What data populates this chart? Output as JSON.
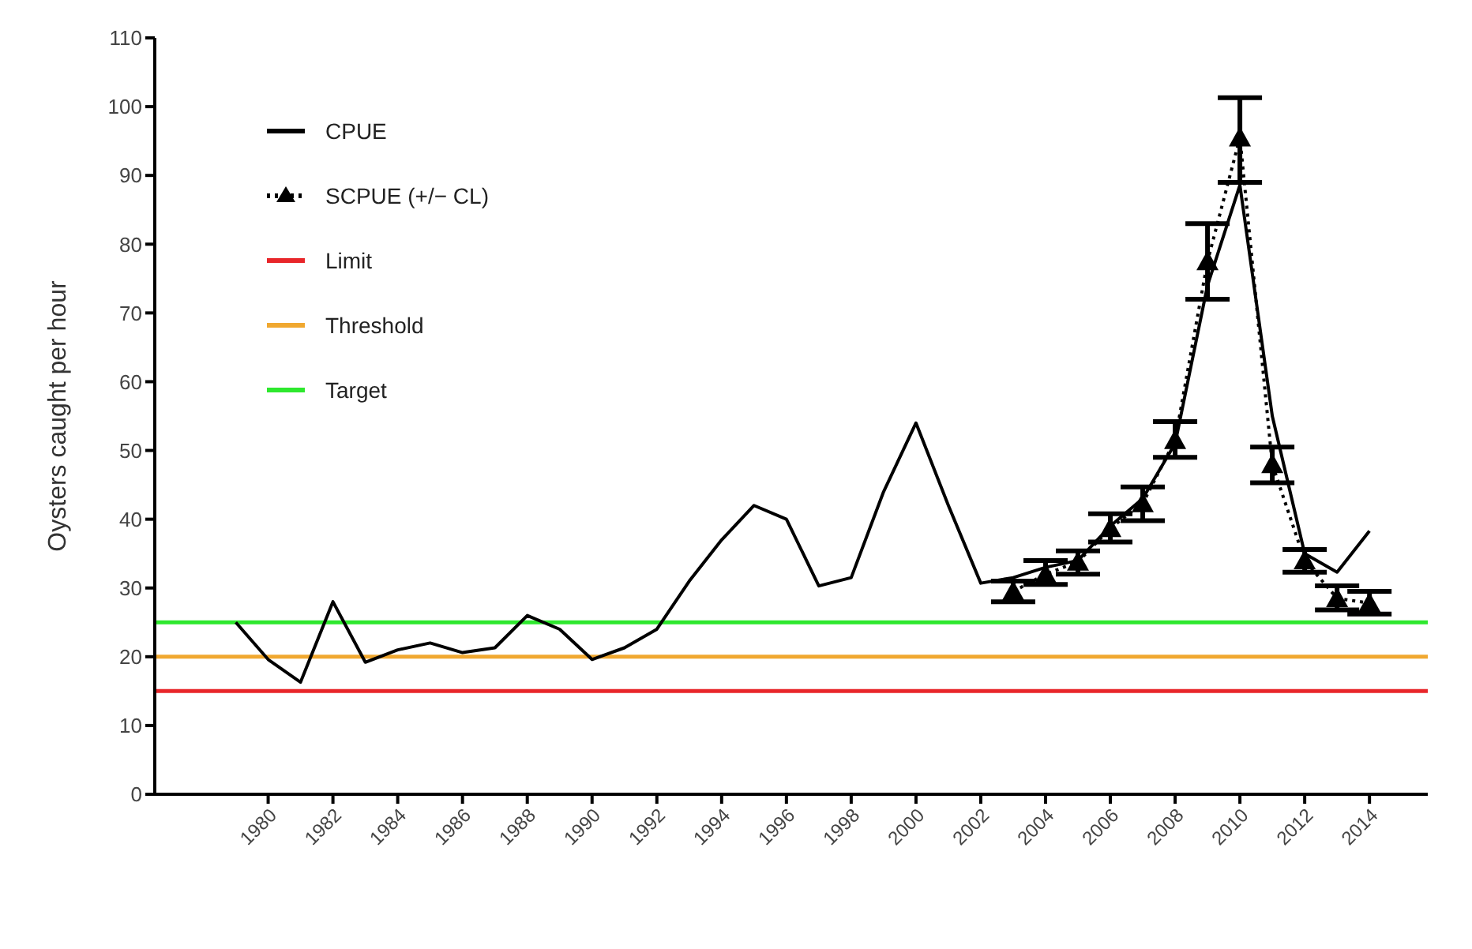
{
  "chart_data": {
    "type": "line",
    "ylabel": "Oysters caught per hour",
    "series": [
      {
        "name": "CPUE",
        "color": "#000000",
        "x": [
          1979,
          1980,
          1981,
          1982,
          1983,
          1984,
          1985,
          1986,
          1987,
          1988,
          1989,
          1990,
          1991,
          1992,
          1993,
          1994,
          1995,
          1996,
          1997,
          1998,
          1999,
          2000,
          2001,
          2002,
          2003,
          2004,
          2005,
          2006,
          2007,
          2008,
          2009,
          2010,
          2011,
          2012,
          2013,
          2014
        ],
        "values": [
          25,
          19.6,
          16.3,
          28,
          19.2,
          21,
          22,
          20.6,
          21.3,
          26,
          24,
          19.6,
          21.3,
          24,
          31,
          37,
          42,
          40,
          30.3,
          31.5,
          44,
          54,
          42,
          30.7,
          31.5,
          33,
          34,
          39,
          43,
          51,
          74,
          88.6,
          55,
          35,
          32.3,
          38.3
        ],
        "marker": "none",
        "line_style": "solid"
      },
      {
        "name": "SCPUE (+/− CL)",
        "color": "#000000",
        "x": [
          2003,
          2004,
          2005,
          2006,
          2007,
          2008,
          2009,
          2010,
          2011,
          2012,
          2013,
          2014
        ],
        "values": [
          29.5,
          32,
          33.8,
          38.7,
          42.3,
          51.5,
          77.5,
          95.5,
          48,
          34,
          28.5,
          27.8
        ],
        "errors": [
          [
            28,
            31
          ],
          [
            30.5,
            34
          ],
          [
            32,
            35.4
          ],
          [
            36.7,
            40.8
          ],
          [
            39.8,
            44.7
          ],
          [
            49,
            54.2
          ],
          [
            72,
            83
          ],
          [
            89,
            101.3
          ],
          [
            45.3,
            50.5
          ],
          [
            32.3,
            35.6
          ],
          [
            26.8,
            30.3
          ],
          [
            26.2,
            29.5
          ]
        ],
        "marker": "triangle",
        "line_style": "dotted"
      }
    ],
    "ref_lines": [
      {
        "axis": "y",
        "value": 15,
        "label": "Limit",
        "color": "#e8262a"
      },
      {
        "axis": "y",
        "value": 20,
        "label": "Threshold",
        "color": "#f0a830"
      },
      {
        "axis": "y",
        "value": 25,
        "label": "Target",
        "color": "#2ee82e"
      }
    ],
    "xlim": [
      1976.5,
      2015.8
    ],
    "xticks": [
      1980,
      1982,
      1984,
      1986,
      1988,
      1990,
      1992,
      1994,
      1996,
      1998,
      2000,
      2002,
      2004,
      2006,
      2008,
      2010,
      2012,
      2014
    ],
    "ylim": [
      0,
      110
    ],
    "yticks": [
      0,
      10,
      20,
      30,
      40,
      50,
      60,
      70,
      80,
      90,
      100,
      110
    ],
    "grid": false,
    "legend": "top left"
  }
}
